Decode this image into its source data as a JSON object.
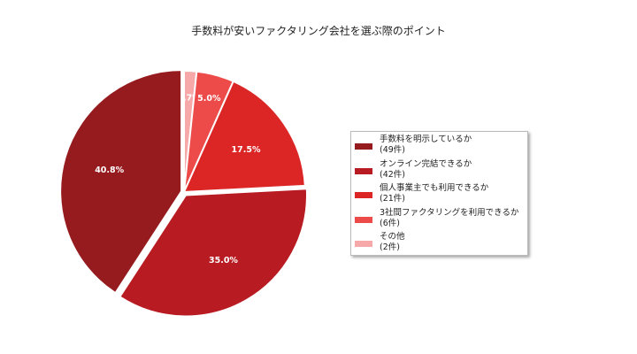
{
  "chart_data": {
    "type": "pie",
    "title": "手数料が安いファクタリング会社を選ぶ際のポイント",
    "categories": [
      "手数料を明示しているか",
      "オンライン完結できるか",
      "個人事業主でも利用できるか",
      "3社間ファクタリングを利用できるか",
      "その他"
    ],
    "values": [
      49,
      42,
      21,
      6,
      2
    ],
    "percentages": [
      "40.8%",
      "35.0%",
      "17.5%",
      "5.0%",
      "1.7%"
    ],
    "counts_labels": [
      "(49件)",
      "(42件)",
      "(21件)",
      "(6件)",
      "(2件)"
    ],
    "colors": [
      "#961b1e",
      "#b81c22",
      "#dc2626",
      "#ed4a4a",
      "#f7a8a8"
    ],
    "legend_position": "right"
  }
}
